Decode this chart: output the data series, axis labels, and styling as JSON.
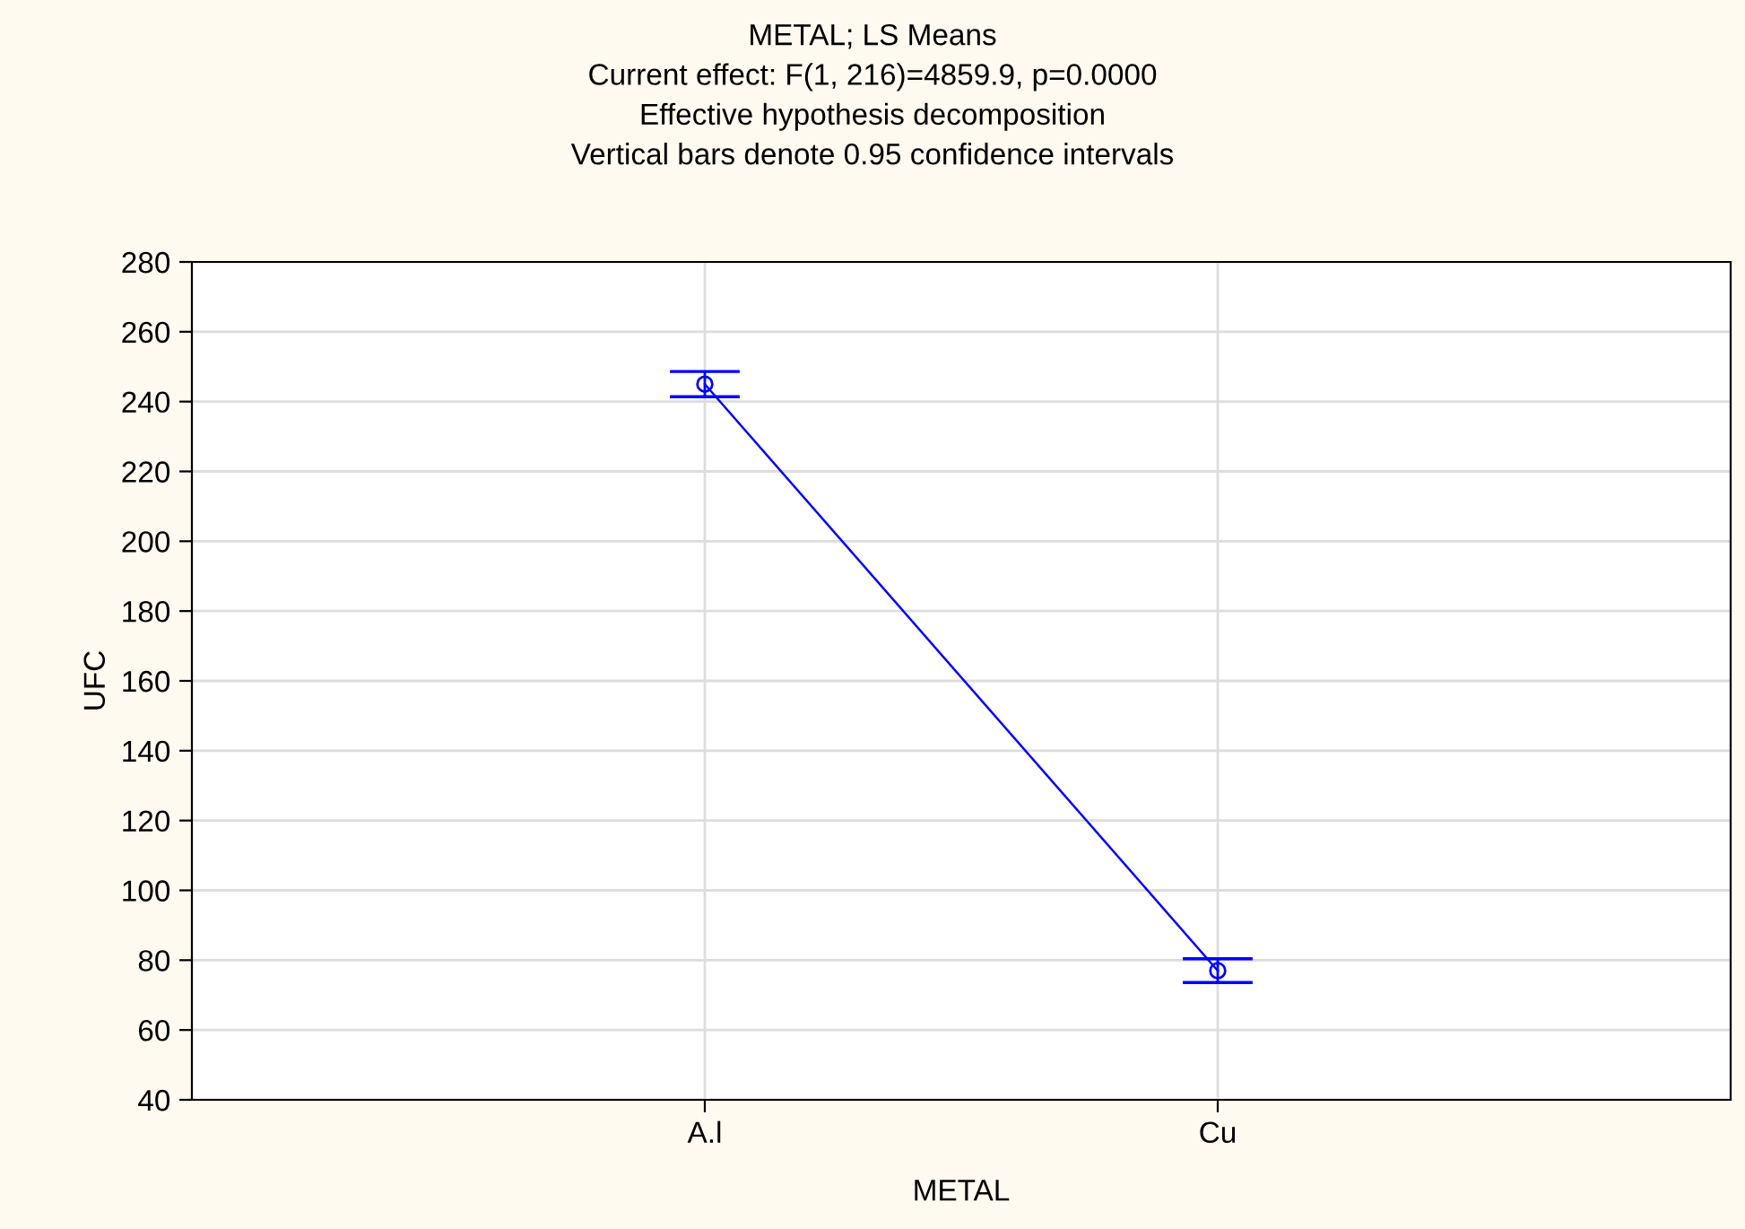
{
  "chart_data": {
    "type": "line",
    "title": "METAL; LS Means\nCurrent effect: F(1, 216)=4859.9, p=0.0000\nEffective hypothesis decomposition\nVertical bars denote 0.95 confidence intervals",
    "xlabel": "METAL",
    "ylabel": "UFC",
    "categories": [
      "A.l",
      "Cu"
    ],
    "series": [
      {
        "color": "#0000ff",
        "values": [
          245,
          77
        ],
        "errors": [
          3.6,
          3.4
        ]
      }
    ],
    "ylim": [
      40,
      280
    ],
    "yticks": [
      40,
      60,
      80,
      100,
      120,
      140,
      160,
      180,
      200,
      220,
      240,
      260,
      280
    ],
    "grid": true,
    "marker": "circle",
    "line_style": "solid"
  }
}
